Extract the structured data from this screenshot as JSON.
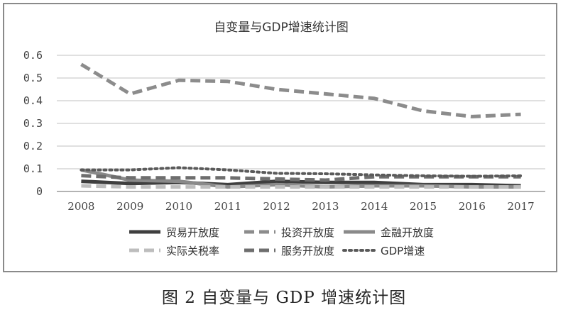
{
  "chart_data": {
    "type": "line",
    "title": "自变量与GDP增速统计图",
    "xlabel": "",
    "ylabel": "",
    "categories": [
      "2008",
      "2009",
      "2010",
      "2011",
      "2012",
      "2013",
      "2014",
      "2015",
      "2016",
      "2017"
    ],
    "y_ticks": [
      "0",
      "0.1",
      "0.2",
      "0.3",
      "0.4",
      "0.5",
      "0.6"
    ],
    "ylim": [
      0,
      0.6
    ],
    "grid": true,
    "legend_position": "bottom",
    "series": [
      {
        "name": "贸易开放度",
        "color": "#3f3f3f",
        "dash": "solid",
        "width": 5,
        "values": [
          0.045,
          0.035,
          0.04,
          0.03,
          0.045,
          0.04,
          0.04,
          0.03,
          0.03,
          0.025
        ]
      },
      {
        "name": "投资开放度",
        "color": "#8c8c8c",
        "dash": "dashed",
        "width": 5,
        "values": [
          0.56,
          0.43,
          0.49,
          0.485,
          0.45,
          0.43,
          0.41,
          0.355,
          0.33,
          0.34
        ]
      },
      {
        "name": "金融开放度",
        "color": "#8a8a8a",
        "dash": "solid",
        "width": 5,
        "values": [
          0.095,
          0.05,
          0.045,
          0.02,
          0.03,
          0.02,
          0.025,
          0.025,
          0.02,
          0.02
        ]
      },
      {
        "name": "实际关税率",
        "color": "#bdbdbd",
        "dash": "dashed",
        "width": 5,
        "values": [
          0.025,
          0.02,
          0.02,
          0.02,
          0.02,
          0.02,
          0.02,
          0.02,
          0.02,
          0.02
        ]
      },
      {
        "name": "服务开放度",
        "color": "#6e6e6e",
        "dash": "dashed",
        "width": 5,
        "values": [
          0.07,
          0.06,
          0.06,
          0.06,
          0.055,
          0.05,
          0.065,
          0.065,
          0.065,
          0.065
        ]
      },
      {
        "name": "GDP增速",
        "color": "#5a5a5a",
        "dash": "dotted",
        "width": 4,
        "values": [
          0.095,
          0.095,
          0.105,
          0.095,
          0.08,
          0.078,
          0.073,
          0.069,
          0.067,
          0.069
        ]
      }
    ]
  },
  "figure_caption": "图 2  自变量与 GDP 增速统计图"
}
